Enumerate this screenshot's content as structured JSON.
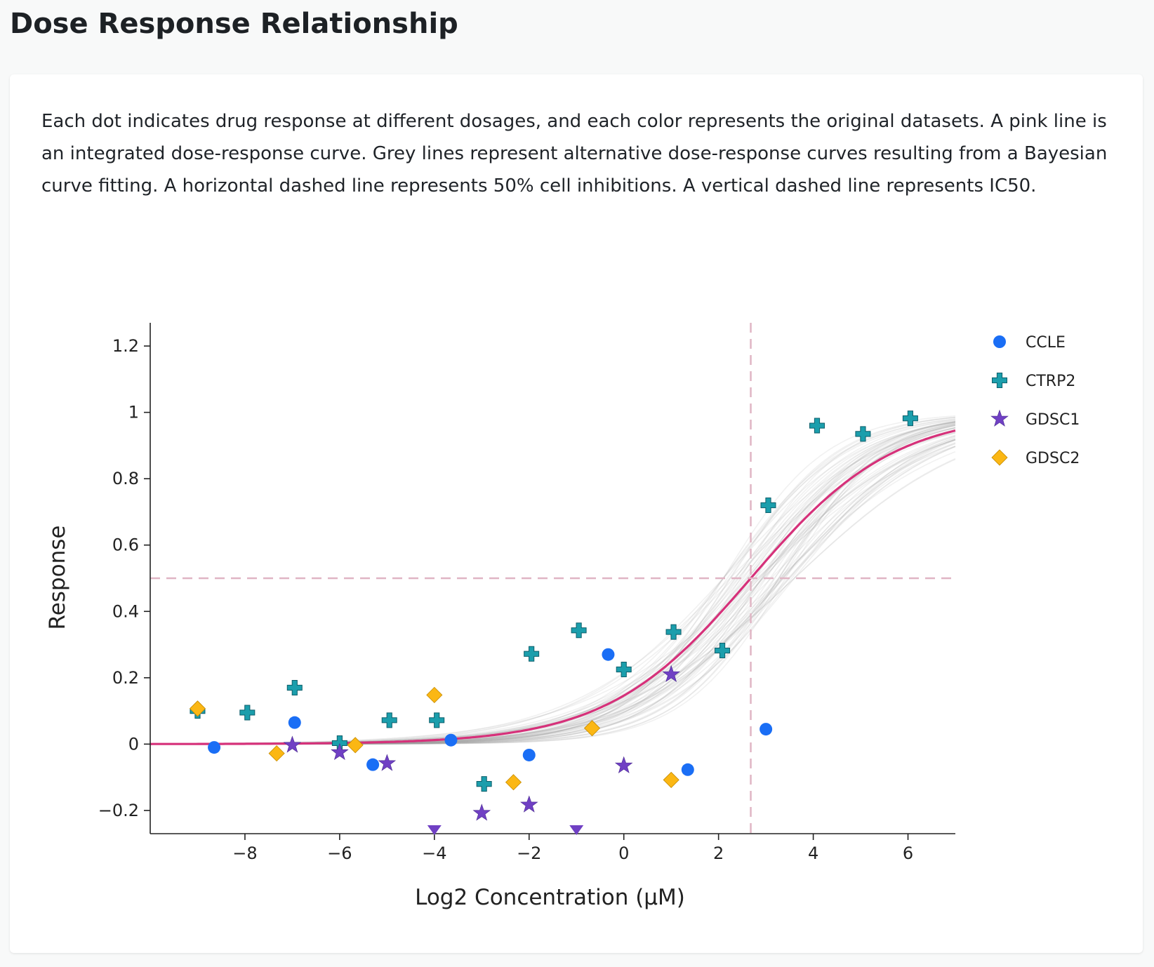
{
  "page": {
    "title": "Dose Response Relationship",
    "description": "Each dot indicates drug response at different dosages, and each color represents the original datasets. A pink line is an integrated dose-response curve. Grey lines represent alternative dose-response curves resulting from a Bayesian curve fitting. A horizontal dashed line represents 50% cell inhibitions. A vertical dashed line represents IC50."
  },
  "chart_data": {
    "type": "scatter",
    "xlabel": "Log2 Concentration (μM)",
    "ylabel": "Response",
    "xlim": [
      -10,
      7
    ],
    "ylim": [
      -0.27,
      1.27
    ],
    "x_ticks": [
      -8,
      -6,
      -4,
      -2,
      0,
      2,
      4,
      6
    ],
    "x_tick_labels": [
      "−8",
      "−6",
      "−4",
      "−2",
      "0",
      "2",
      "4",
      "6"
    ],
    "y_ticks": [
      -0.2,
      0,
      0.2,
      0.4,
      0.6,
      0.8,
      1,
      1.2
    ],
    "y_tick_labels": [
      "−0.2",
      "0",
      "0.2",
      "0.4",
      "0.6",
      "0.8",
      "1",
      "1.2"
    ],
    "legend_position": "top-right",
    "ic50_log2": 2.68,
    "half_inhibition": 0.5,
    "fit_curve": {
      "name": "integrated dose-response curve",
      "ec50": 2.68,
      "hill_slope": 0.95,
      "color": "#d6317a"
    },
    "alternative_curves": {
      "count": 60,
      "ec50_range": [
        2.1,
        3.6
      ],
      "hill_range": [
        0.75,
        1.35
      ],
      "color": "#9a9a9a"
    },
    "series": [
      {
        "name": "CCLE",
        "marker": "circle",
        "color": "#1a6ef5",
        "points": [
          [
            -8.65,
            -0.01
          ],
          [
            -6.95,
            0.065
          ],
          [
            -5.3,
            -0.062
          ],
          [
            -3.65,
            0.012
          ],
          [
            -2.0,
            -0.033
          ],
          [
            -0.33,
            0.27
          ],
          [
            1.35,
            -0.077
          ],
          [
            3.0,
            0.045
          ]
        ]
      },
      {
        "name": "CTRP2",
        "marker": "cross",
        "color": "#1b9eac",
        "points": [
          [
            -9.0,
            0.1
          ],
          [
            -7.95,
            0.095
          ],
          [
            -6.95,
            0.17
          ],
          [
            -6.0,
            0.003
          ],
          [
            -4.95,
            0.072
          ],
          [
            -3.95,
            0.072
          ],
          [
            -2.95,
            -0.12
          ],
          [
            -1.95,
            0.272
          ],
          [
            -0.95,
            0.343
          ],
          [
            0.0,
            0.225
          ],
          [
            1.05,
            0.338
          ],
          [
            2.08,
            0.282
          ],
          [
            3.05,
            0.72
          ],
          [
            4.08,
            0.96
          ],
          [
            5.05,
            0.935
          ],
          [
            6.05,
            0.982
          ]
        ]
      },
      {
        "name": "GDSC1",
        "marker": "star",
        "color": "#7040c4",
        "points": [
          [
            -7.0,
            -0.003
          ],
          [
            -6.0,
            -0.025
          ],
          [
            -5.0,
            -0.058
          ],
          [
            -3.0,
            -0.208
          ],
          [
            -2.0,
            -0.183
          ],
          [
            0.0,
            -0.065
          ],
          [
            1.0,
            0.21
          ]
        ]
      },
      {
        "name": "GDSC1 (below axis)",
        "marker": "triangle-down",
        "color": "#7040c4",
        "points": [
          [
            -4.0,
            -0.27
          ],
          [
            -1.0,
            -0.27
          ]
        ]
      },
      {
        "name": "GDSC2",
        "marker": "diamond",
        "color": "#fbb714",
        "points": [
          [
            -9.0,
            0.107
          ],
          [
            -7.33,
            -0.028
          ],
          [
            -5.67,
            -0.003
          ],
          [
            -4.0,
            0.148
          ],
          [
            -2.33,
            -0.115
          ],
          [
            -0.67,
            0.048
          ],
          [
            1.0,
            -0.108
          ]
        ]
      }
    ],
    "legend": [
      "CCLE",
      "CTRP2",
      "GDSC1",
      "GDSC2"
    ]
  }
}
